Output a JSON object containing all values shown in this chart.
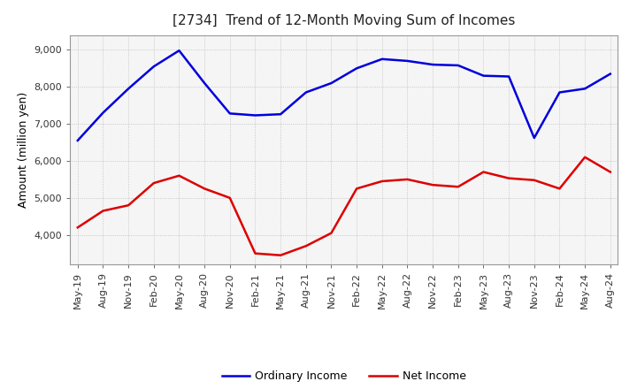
{
  "title": "[2734]  Trend of 12-Month Moving Sum of Incomes",
  "ylabel": "Amount (million yen)",
  "ylim": [
    3200,
    9400
  ],
  "yticks": [
    4000,
    5000,
    6000,
    7000,
    8000,
    9000
  ],
  "background_color": "#ffffff",
  "plot_bg_color": "#f5f5f5",
  "grid_color": "#bbbbbb",
  "ordinary_income_color": "#0000dd",
  "net_income_color": "#dd0000",
  "line_width": 1.8,
  "x_labels": [
    "May-19",
    "Aug-19",
    "Nov-19",
    "Feb-20",
    "May-20",
    "Aug-20",
    "Nov-20",
    "Feb-21",
    "May-21",
    "Aug-21",
    "Nov-21",
    "Feb-22",
    "May-22",
    "Aug-22",
    "Nov-22",
    "Feb-23",
    "May-23",
    "Aug-23",
    "Nov-23",
    "Feb-24",
    "May-24",
    "Aug-24"
  ],
  "ordinary_income": [
    6550,
    7300,
    7950,
    8550,
    8980,
    8100,
    7280,
    7230,
    7260,
    7850,
    8100,
    8500,
    8750,
    8700,
    8600,
    8580,
    8300,
    8280,
    6620,
    7850,
    7950,
    8350
  ],
  "net_income": [
    4200,
    4650,
    4800,
    5400,
    5600,
    5250,
    5000,
    3500,
    3450,
    3700,
    4050,
    5250,
    5450,
    5500,
    5350,
    5300,
    5700,
    5530,
    5480,
    5250,
    6100,
    5700
  ],
  "legend_labels": [
    "Ordinary Income",
    "Net Income"
  ],
  "title_fontsize": 11,
  "axis_label_fontsize": 9,
  "tick_fontsize": 8
}
